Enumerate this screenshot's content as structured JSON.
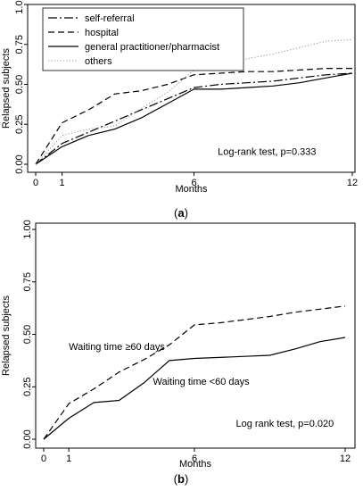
{
  "chart_data": [
    {
      "panel": "(a)",
      "type": "line",
      "step": false,
      "xlabel": "Months",
      "ylabel": "Relapsed subjects",
      "xlim": [
        0,
        12
      ],
      "ylim": [
        0,
        1
      ],
      "xticks": [
        0,
        1,
        6,
        12
      ],
      "yticks": [
        0,
        0.25,
        0.5,
        0.75,
        1
      ],
      "ytick_labels": [
        "0.00",
        "0.25",
        "0.50",
        "0.75",
        "1.00"
      ],
      "legend_position": "top-left",
      "grid": false,
      "annotations": [
        {
          "text": "Log-rank test, p=0.333",
          "x": 6.9,
          "y": 0.06
        }
      ],
      "series": [
        {
          "name": "self-referral",
          "style": "dashdot",
          "x": [
            0,
            1,
            2,
            3,
            4,
            5,
            6,
            7,
            8,
            9,
            10,
            11,
            12
          ],
          "y": [
            0,
            0.13,
            0.2,
            0.27,
            0.34,
            0.41,
            0.48,
            0.5,
            0.51,
            0.52,
            0.54,
            0.56,
            0.57
          ]
        },
        {
          "name": "hospital",
          "style": "dashed",
          "x": [
            0,
            1,
            2,
            3,
            4,
            5,
            6,
            7,
            8,
            9,
            10,
            11,
            12
          ],
          "y": [
            0,
            0.26,
            0.34,
            0.44,
            0.46,
            0.5,
            0.56,
            0.57,
            0.58,
            0.58,
            0.59,
            0.6,
            0.6
          ]
        },
        {
          "name": "general practitioner/pharmacist",
          "style": "solid",
          "x": [
            0,
            1,
            2,
            3,
            4,
            5,
            6,
            7,
            8,
            9,
            10,
            11,
            12
          ],
          "y": [
            0,
            0.11,
            0.18,
            0.22,
            0.29,
            0.38,
            0.47,
            0.47,
            0.48,
            0.49,
            0.51,
            0.54,
            0.57
          ]
        },
        {
          "name": "others",
          "style": "dotted",
          "x": [
            0,
            1,
            2,
            3,
            4,
            5,
            6,
            7,
            8,
            9,
            10,
            11,
            12
          ],
          "y": [
            0,
            0.18,
            0.22,
            0.24,
            0.35,
            0.45,
            0.59,
            0.63,
            0.66,
            0.69,
            0.73,
            0.77,
            0.78
          ]
        }
      ]
    },
    {
      "panel": "(b)",
      "type": "line",
      "step": false,
      "xlabel": "Months",
      "ylabel": "Relapsed subjects",
      "xlim": [
        0,
        12
      ],
      "ylim": [
        0,
        1
      ],
      "xticks": [
        0,
        1,
        6,
        12
      ],
      "yticks": [
        0,
        0.25,
        0.5,
        0.75,
        1
      ],
      "ytick_labels": [
        "0.00",
        "0.25",
        "0.50",
        "0.75",
        "1.00"
      ],
      "grid": false,
      "annotations": [
        {
          "text": "Waiting time ≥60 days",
          "x": 1.0,
          "y": 0.425
        },
        {
          "text": "Waiting time <60 days",
          "x": 4.35,
          "y": 0.26
        },
        {
          "text": "Log rank test, p=0.020",
          "x": 7.65,
          "y": 0.06
        }
      ],
      "series": [
        {
          "label": "Waiting time ≥60 days",
          "style": "dashed",
          "x": [
            0,
            1,
            2,
            3,
            4,
            5,
            6,
            7,
            8,
            9,
            10,
            11,
            12
          ],
          "y": [
            0,
            0.17,
            0.24,
            0.32,
            0.38,
            0.45,
            0.545,
            0.555,
            0.57,
            0.585,
            0.605,
            0.62,
            0.635
          ]
        },
        {
          "label": "Waiting time <60 days",
          "style": "solid",
          "x": [
            0,
            1,
            2,
            3,
            4,
            5,
            6,
            7,
            8,
            9,
            10,
            11,
            12
          ],
          "y": [
            0,
            0.1,
            0.175,
            0.185,
            0.27,
            0.375,
            0.385,
            0.39,
            0.395,
            0.4,
            0.43,
            0.465,
            0.485
          ]
        }
      ]
    }
  ]
}
